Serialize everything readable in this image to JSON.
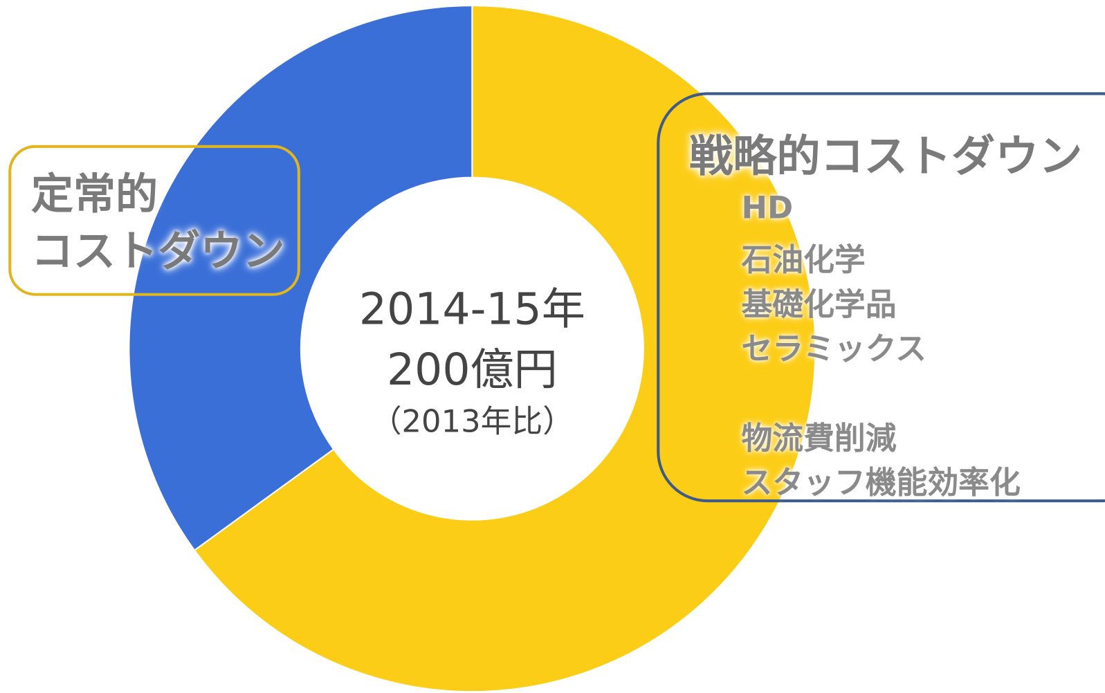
{
  "chart_data": {
    "type": "donut",
    "categories": [
      "定常的\nコストダウン",
      "戦略的コストダウン"
    ],
    "values": [
      35,
      65
    ],
    "colors": [
      "#3a6fd8",
      "#fccd16"
    ],
    "center_text": [
      "2014-15年",
      "200億円",
      "（2013年比）"
    ],
    "items": [
      [
        "HD",
        "石油化学",
        "基礎化学品",
        "セラミックス"
      ],
      [
        "物流費削減",
        "スタッフ機能効率化"
      ]
    ]
  }
}
